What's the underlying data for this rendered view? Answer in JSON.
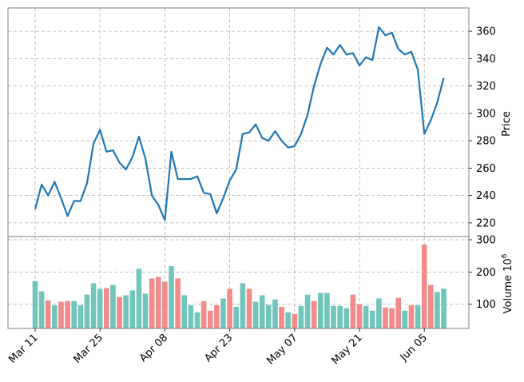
{
  "chart_data": {
    "type": "line",
    "title": "",
    "grid": true,
    "x": [
      "03-11",
      "03-12",
      "03-13",
      "03-14",
      "03-15",
      "03-18",
      "03-19",
      "03-20",
      "03-21",
      "03-22",
      "03-25",
      "03-26",
      "03-27",
      "03-28",
      "03-29",
      "04-01",
      "04-02",
      "04-03",
      "04-04",
      "04-05",
      "04-08",
      "04-09",
      "04-10",
      "04-11",
      "04-12",
      "04-15",
      "04-16",
      "04-17",
      "04-18",
      "04-19",
      "04-22",
      "04-23",
      "04-24",
      "04-25",
      "04-26",
      "04-29",
      "04-30",
      "05-01",
      "05-02",
      "05-03",
      "05-06",
      "05-07",
      "05-08",
      "05-09",
      "05-10",
      "05-13",
      "05-14",
      "05-15",
      "05-16",
      "05-17",
      "05-20",
      "05-21",
      "05-22",
      "05-23",
      "05-24",
      "05-27",
      "05-28",
      "05-29",
      "05-30",
      "05-31",
      "06-03",
      "06-04",
      "06-05",
      "06-06",
      "06-07"
    ],
    "xticks": [
      {
        "index": 0,
        "label": "Mar 11"
      },
      {
        "index": 10,
        "label": "Mar 25"
      },
      {
        "index": 20,
        "label": "Apr 08"
      },
      {
        "index": 30,
        "label": "Apr 23"
      },
      {
        "index": 40,
        "label": "May 07"
      },
      {
        "index": 50,
        "label": "May 21"
      },
      {
        "index": 60,
        "label": "Jun 05"
      }
    ],
    "price": {
      "ylabel": "Price",
      "ylim": [
        210,
        377
      ],
      "yticks": [
        220,
        240,
        260,
        280,
        300,
        320,
        340,
        360
      ],
      "color": "#1f77b4",
      "values": [
        230,
        248,
        240,
        250,
        238,
        225,
        236,
        236,
        249,
        278,
        288,
        272,
        273,
        264,
        259,
        268,
        283,
        267,
        240,
        233,
        222,
        272,
        252,
        252,
        252,
        254,
        242,
        241,
        227,
        238,
        251,
        259,
        285,
        286,
        292,
        282,
        280,
        287,
        280,
        275,
        276,
        285,
        299,
        320,
        336,
        348,
        343,
        350,
        343,
        344,
        335,
        341,
        339,
        363,
        357,
        359,
        347,
        343,
        345,
        332,
        285,
        295,
        308,
        326,
        null
      ]
    },
    "volume": {
      "ylabel": "Volume  10",
      "ylabel_exp": "6",
      "ylim": [
        25,
        310
      ],
      "yticks": [
        100,
        200,
        300
      ],
      "up_color": "#72c5bb",
      "down_color": "#f28b8b",
      "values": [
        172,
        140,
        112,
        97,
        108,
        110,
        110,
        97,
        130,
        165,
        148,
        150,
        160,
        122,
        128,
        143,
        210,
        133,
        180,
        185,
        170,
        218,
        180,
        128,
        97,
        75,
        110,
        80,
        97,
        118,
        148,
        92,
        165,
        148,
        108,
        128,
        98,
        115,
        92,
        75,
        70,
        95,
        130,
        110,
        135,
        135,
        95,
        95,
        88,
        130,
        100,
        95,
        80,
        118,
        90,
        88,
        120,
        80,
        97,
        97,
        285,
        160,
        138,
        148,
        null
      ],
      "direction": [
        "up",
        "up",
        "down",
        "up",
        "down",
        "down",
        "up",
        "up",
        "up",
        "up",
        "up",
        "down",
        "up",
        "down",
        "up",
        "up",
        "up",
        "up",
        "down",
        "down",
        "down",
        "up",
        "down",
        "up",
        "up",
        "up",
        "down",
        "down",
        "down",
        "up",
        "down",
        "up",
        "up",
        "down",
        "up",
        "up",
        "up",
        "up",
        "down",
        "up",
        "down",
        "up",
        "up",
        "down",
        "up",
        "up",
        "up",
        "up",
        "up",
        "down",
        "down",
        "up",
        "up",
        "up",
        "down",
        "down",
        "down",
        "up",
        "down",
        "up",
        "down",
        "down",
        "up",
        "up",
        null
      ]
    }
  }
}
